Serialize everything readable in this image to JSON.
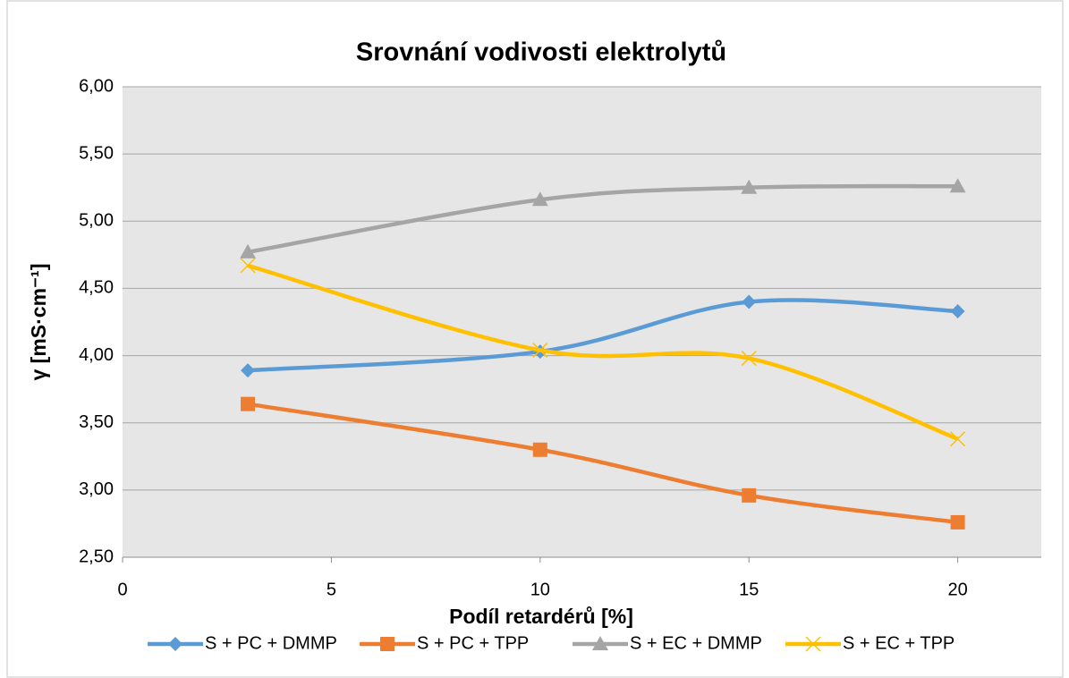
{
  "chart_data": {
    "type": "line",
    "smooth": true,
    "title": "Srovnání vodivosti elektrolytů",
    "xlabel": "Podíl retardérů [%]",
    "ylabel": "γ [mS·cm⁻¹]",
    "x": [
      3,
      10,
      15,
      20
    ],
    "series": [
      {
        "name": "S + PC + DMMP",
        "color": "#5b9bd5",
        "marker": "diamond",
        "values": [
          3.89,
          4.03,
          4.4,
          4.33
        ]
      },
      {
        "name": "S + PC + TPP",
        "color": "#ed7d31",
        "marker": "square",
        "values": [
          3.64,
          3.3,
          2.96,
          2.76
        ]
      },
      {
        "name": "S + EC + DMMP",
        "color": "#a5a5a5",
        "marker": "triangle",
        "values": [
          4.77,
          5.16,
          5.25,
          5.26
        ]
      },
      {
        "name": "S + EC + TPP",
        "color": "#ffc000",
        "marker": "x",
        "values": [
          4.67,
          4.04,
          3.98,
          3.38
        ]
      }
    ],
    "xlim": [
      0,
      22
    ],
    "xticks": [
      0,
      5,
      10,
      15,
      20
    ],
    "ylim": [
      2.5,
      6
    ],
    "yticks": [
      {
        "value": 2.5,
        "label": "2,50"
      },
      {
        "value": 3,
        "label": "3,00"
      },
      {
        "value": 3.5,
        "label": "3,50"
      },
      {
        "value": 4,
        "label": "4,00"
      },
      {
        "value": 4.5,
        "label": "4,50"
      },
      {
        "value": 5,
        "label": "5,00"
      },
      {
        "value": 5.5,
        "label": "5,50"
      },
      {
        "value": 6,
        "label": "6,00"
      }
    ],
    "grid": true,
    "legend": "bottom"
  }
}
